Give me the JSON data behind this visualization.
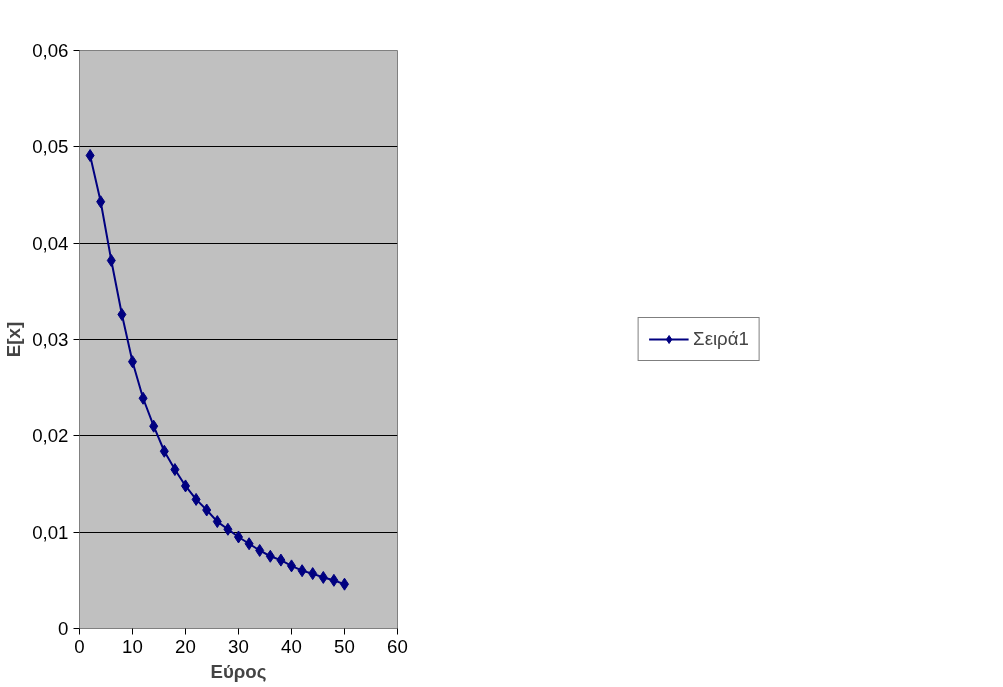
{
  "chart_data": {
    "type": "line",
    "xlabel": "Εύρος",
    "ylabel": "E[x]",
    "x": [
      2,
      4,
      6,
      8,
      10,
      12,
      14,
      16,
      18,
      20,
      22,
      24,
      26,
      28,
      30,
      32,
      34,
      36,
      38,
      40,
      42,
      44,
      46,
      48,
      50
    ],
    "series": [
      {
        "name": "Σειρά1",
        "color": "#000080",
        "values": [
          0.0491,
          0.0443,
          0.0382,
          0.0326,
          0.0277,
          0.0239,
          0.021,
          0.0184,
          0.0165,
          0.0148,
          0.0134,
          0.0123,
          0.0111,
          0.0103,
          0.0095,
          0.0088,
          0.0081,
          0.0075,
          0.0071,
          0.0065,
          0.006,
          0.0057,
          0.0053,
          0.005,
          0.0046
        ]
      }
    ],
    "xlim": [
      0,
      60
    ],
    "xticks": [
      0,
      10,
      20,
      30,
      40,
      50,
      60
    ],
    "ylim": [
      0,
      0.06
    ],
    "yticks": [
      0,
      {
        "value": 0.01,
        "label": "0,01"
      },
      {
        "value": 0.02,
        "label": "0,02"
      },
      {
        "value": 0.03,
        "label": "0,03"
      },
      {
        "value": 0.04,
        "label": "0,04"
      },
      {
        "value": 0.05,
        "label": "0,05"
      },
      {
        "value": 0.06,
        "label": "0,06"
      }
    ],
    "grid": "y",
    "legend": "right",
    "marker": "diamond",
    "line_style": "solid"
  }
}
